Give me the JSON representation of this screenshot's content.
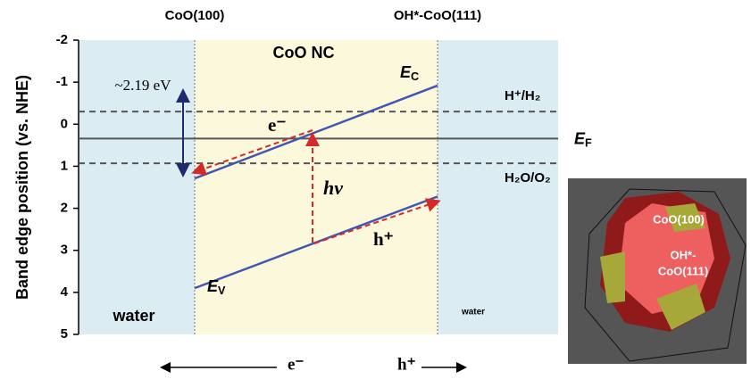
{
  "chart_data": {
    "type": "band",
    "ylabel": "Band edge position (vs. NHE)",
    "ylim": [
      -2,
      5
    ],
    "yticks": [
      -2,
      -1,
      0,
      1,
      2,
      3,
      4,
      5
    ],
    "inverted": true,
    "interfaces": [
      "CoO(100)",
      "OH*-CoO(111)"
    ],
    "regions": [
      {
        "label": "water",
        "color": "#dbedf3"
      },
      {
        "label": "CoO NC",
        "color": "#fcf8dc"
      },
      {
        "label": "water",
        "color": "#dbedf3"
      }
    ],
    "bands": [
      {
        "name": "E",
        "sub": "C",
        "color": "#4257b2",
        "values": [
          1.29,
          -0.92
        ]
      },
      {
        "name": "E",
        "sub": "V",
        "color": "#4257b2",
        "values": [
          3.9,
          1.72
        ]
      }
    ],
    "levels": [
      {
        "name": "H⁺/H₂",
        "value": -0.3,
        "style": "dashed",
        "color": "#555555"
      },
      {
        "name": "E",
        "sub": "F",
        "value": 0.34,
        "style": "solid",
        "color": "#555555"
      },
      {
        "name": "H₂O/O₂",
        "value": 0.93,
        "style": "dashed",
        "color": "#555555"
      }
    ],
    "annotations": {
      "gap": "~2.19 eV",
      "electron": "e⁻",
      "hole": "h⁺",
      "photon": "hν"
    },
    "flow": [
      "e⁻",
      "h⁺"
    ],
    "inset": {
      "labels": [
        "CoO(100)",
        "OH*-",
        "CoO(111)"
      ]
    }
  }
}
